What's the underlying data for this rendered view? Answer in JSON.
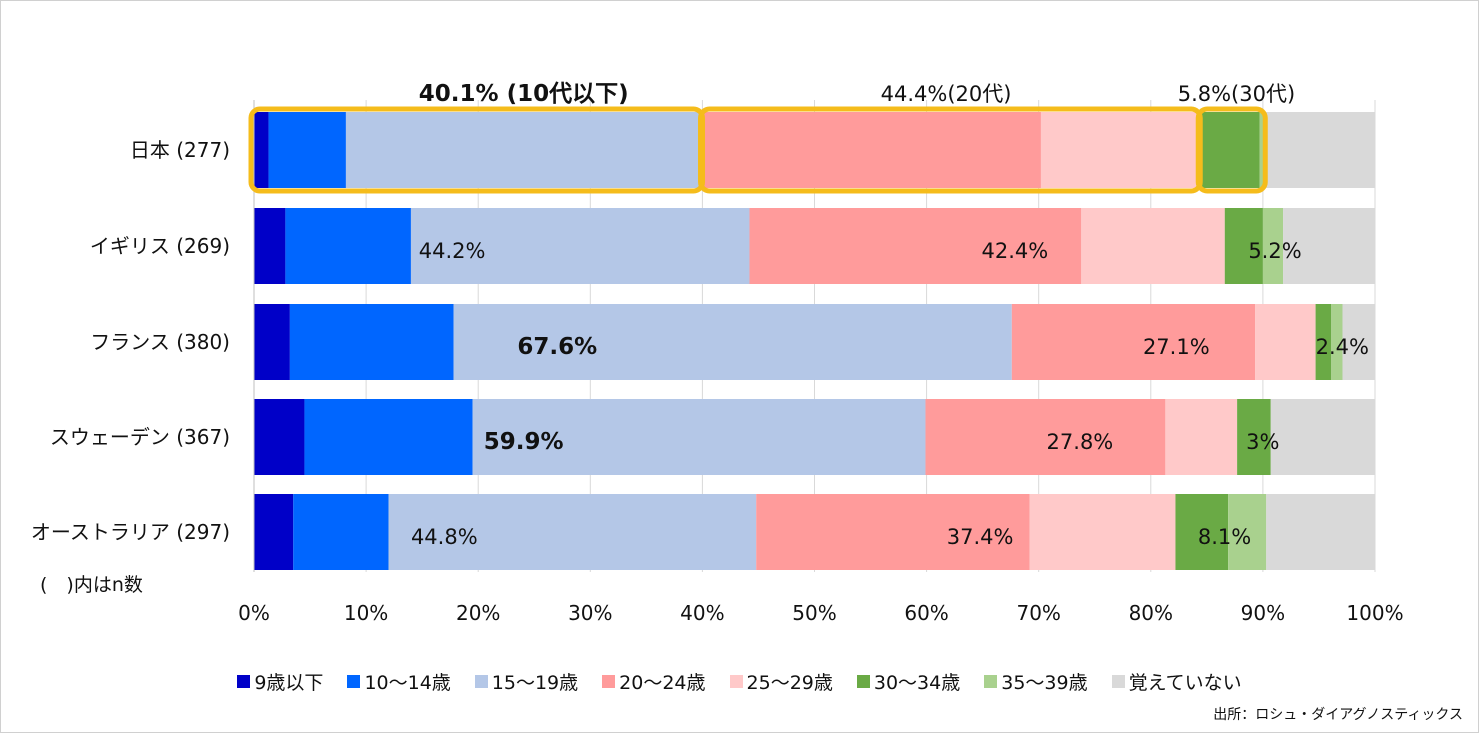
{
  "chart_data": {
    "type": "bar",
    "orientation": "horizontal",
    "stacked": true,
    "categories": [
      "日本 (277)",
      "イギリス (269)",
      "フランス (380)",
      "スウェーデン (367)",
      "オーストラリア (297)"
    ],
    "xlim": [
      0,
      100
    ],
    "xticks": [
      "0%",
      "10%",
      "20%",
      "30%",
      "40%",
      "50%",
      "60%",
      "70%",
      "80%",
      "90%",
      "100%"
    ],
    "grid": true,
    "series": [
      {
        "name": "9歳以下",
        "color": "#0000c8",
        "values": [
          1.3,
          2.8,
          3.2,
          4.5,
          3.5
        ]
      },
      {
        "name": "10～14歳",
        "color": "#0066ff",
        "values": [
          6.9,
          11.2,
          14.6,
          15.0,
          8.5
        ]
      },
      {
        "name": "15～19歳",
        "color": "#b4c7e7",
        "values": [
          31.9,
          30.2,
          49.8,
          40.4,
          32.8
        ]
      },
      {
        "name": "20～24歳",
        "color": "#ff9b9b",
        "values": [
          30.1,
          29.6,
          21.7,
          21.4,
          24.4
        ]
      },
      {
        "name": "25～29歳",
        "color": "#ffc9c9",
        "values": [
          14.3,
          12.8,
          5.4,
          6.4,
          13.0
        ]
      },
      {
        "name": "30～34歳",
        "color": "#6aaa45",
        "values": [
          5.2,
          3.4,
          1.4,
          3.0,
          4.7
        ]
      },
      {
        "name": "35～39歳",
        "color": "#a9d18e",
        "values": [
          0.6,
          1.8,
          1.0,
          0.0,
          3.4
        ]
      },
      {
        "name": "覚えていない",
        "color": "#d9d9d9",
        "values": [
          9.7,
          8.2,
          2.9,
          9.3,
          9.7
        ]
      }
    ],
    "annotations": [
      {
        "row": 0,
        "text": "40.1% (10代以下)",
        "bold": true,
        "above": true,
        "x": 14.7,
        "box": [
          0,
          40.1
        ]
      },
      {
        "row": 0,
        "text": "44.4%(20代)",
        "bold": false,
        "above": true,
        "x": 55.9,
        "box": [
          40.1,
          84.5
        ]
      },
      {
        "row": 0,
        "text": "5.8%(30代)",
        "bold": false,
        "above": true,
        "x": 82.4,
        "box": [
          84.5,
          90.3
        ]
      },
      {
        "row": 1,
        "text": "44.2%",
        "bold": false,
        "x": 14.7
      },
      {
        "row": 1,
        "text": "42.4%",
        "bold": false,
        "x": 64.9
      },
      {
        "row": 1,
        "text": "5.2%",
        "bold": false,
        "x": 88.7
      },
      {
        "row": 2,
        "text": "67.6%",
        "bold": true,
        "x": 23.5
      },
      {
        "row": 2,
        "text": "27.1%",
        "bold": false,
        "x": 79.3
      },
      {
        "row": 2,
        "text": "2.4%",
        "bold": false,
        "x": 94.7
      },
      {
        "row": 3,
        "text": "59.9%",
        "bold": true,
        "x": 20.5
      },
      {
        "row": 3,
        "text": "27.8%",
        "bold": false,
        "x": 70.7
      },
      {
        "row": 3,
        "text": "3%",
        "bold": false,
        "x": 88.5
      },
      {
        "row": 4,
        "text": "44.8%",
        "bold": false,
        "x": 14.0
      },
      {
        "row": 4,
        "text": "37.4%",
        "bold": false,
        "x": 61.8
      },
      {
        "row": 4,
        "text": "8.1%",
        "bold": false,
        "x": 84.2
      }
    ],
    "highlight_color": "#f5bc1b"
  },
  "note": "(　)内はn数",
  "source": "出所：ロシュ・ダイアグノスティックス"
}
